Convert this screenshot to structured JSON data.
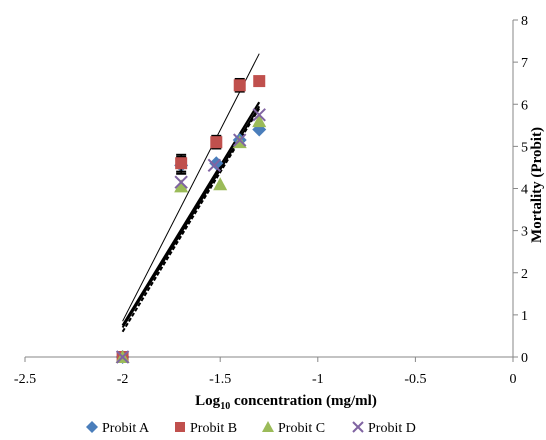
{
  "chart_data": {
    "type": "scatter",
    "xlabel_main": "Log",
    "xlabel_sub": "10",
    "xlabel_rest": " concentration (mg/ml)",
    "ylabel": "Mortality (Probit)",
    "xlim": [
      -2.5,
      0
    ],
    "ylim": [
      0,
      8
    ],
    "x_ticks": [
      -2.5,
      -2,
      -1.5,
      -1,
      -0.5,
      0
    ],
    "y_ticks": [
      0,
      1,
      2,
      3,
      4,
      5,
      6,
      7,
      8
    ],
    "x_tick_labels": [
      "-2.5",
      "-2",
      "-1.5",
      "-1",
      "-0.5",
      "0"
    ],
    "y_tick_labels": [
      "0",
      "1",
      "2",
      "3",
      "4",
      "5",
      "6",
      "7",
      "8"
    ],
    "grid": false,
    "legend_position": "bottom",
    "series": [
      {
        "name": "Probit A",
        "marker": "diamond",
        "color": "#4a7ebb",
        "x": [
          -2.0,
          -1.7,
          -1.52,
          -1.4,
          -1.3
        ],
        "y": [
          0.0,
          4.55,
          4.6,
          5.15,
          5.4
        ],
        "error": [
          0,
          0.2,
          0,
          0,
          0
        ]
      },
      {
        "name": "Probit B",
        "marker": "square",
        "color": "#c0504d",
        "x": [
          -2.0,
          -1.7,
          -1.52,
          -1.4,
          -1.3
        ],
        "y": [
          0.0,
          4.6,
          5.1,
          6.45,
          6.55
        ],
        "error": [
          0,
          0.2,
          0.15,
          0.15,
          0
        ]
      },
      {
        "name": "Probit C",
        "marker": "triangle",
        "color": "#9bbb59",
        "x": [
          -2.0,
          -1.7,
          -1.5,
          -1.4,
          -1.3
        ],
        "y": [
          0.0,
          4.05,
          4.1,
          5.1,
          5.6
        ],
        "error": [
          0,
          0,
          0,
          0,
          0
        ]
      },
      {
        "name": "Probit D",
        "marker": "x",
        "color": "#8064a2",
        "x": [
          -2.0,
          -1.7,
          -1.53,
          -1.4,
          -1.3
        ],
        "y": [
          0.0,
          4.15,
          4.55,
          5.15,
          5.75
        ],
        "error": [
          0,
          0,
          0,
          0,
          0
        ]
      }
    ],
    "trendlines": [
      {
        "x": [
          -2.0,
          -1.3
        ],
        "y": [
          0.85,
          7.2
        ],
        "width": 1,
        "dash": ""
      },
      {
        "x": [
          -2.0,
          -1.3
        ],
        "y": [
          0.75,
          6.05
        ],
        "width": 2.2,
        "dash": ""
      },
      {
        "x": [
          -2.0,
          -1.3
        ],
        "y": [
          0.7,
          5.95
        ],
        "width": 2,
        "dash": ""
      },
      {
        "x": [
          -2.0,
          -1.3
        ],
        "y": [
          0.6,
          5.9
        ],
        "width": 2,
        "dash": "4,2"
      }
    ]
  }
}
